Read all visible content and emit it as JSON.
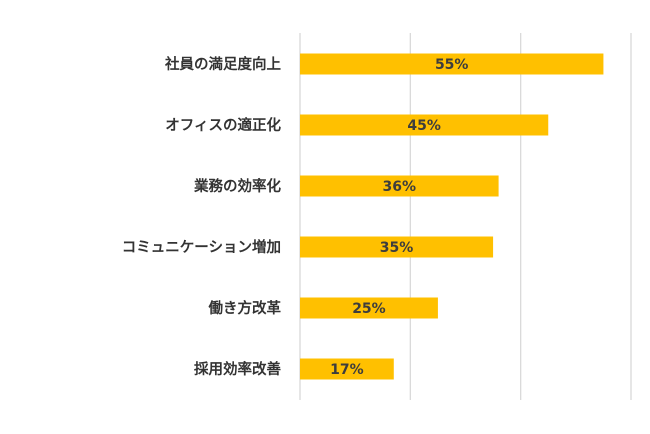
{
  "chart_data": {
    "type": "bar",
    "orientation": "horizontal",
    "categories": [
      "社員の満足度向上",
      "オフィスの適正化",
      "業務の効率化",
      "コミュニケーション増加",
      "働き方改革",
      "採用効率改善"
    ],
    "values": [
      55,
      45,
      36,
      35,
      25,
      17
    ],
    "data_labels": [
      "55%",
      "45%",
      "36%",
      "35%",
      "25%",
      "17%"
    ],
    "title": "",
    "xlabel": "",
    "ylabel": "",
    "xlim": [
      0,
      60
    ],
    "grid": true,
    "grid_step": 20,
    "bar_color": "#FFC000",
    "legend": "none"
  }
}
